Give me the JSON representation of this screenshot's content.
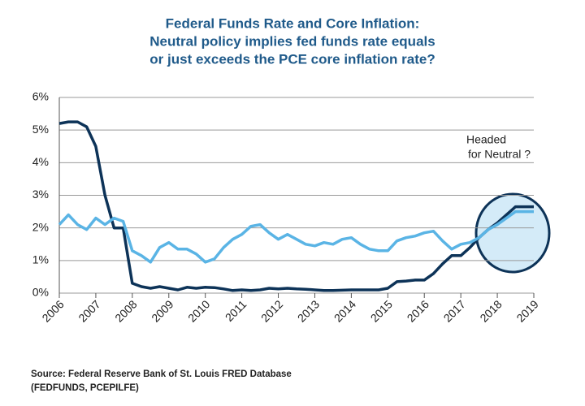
{
  "chart_data": {
    "type": "line",
    "title": [
      "Federal Funds Rate and Core Inflation:",
      "Neutral policy implies fed funds rate equals",
      "or just exceeds the PCE core inflation rate?"
    ],
    "x": [
      2006,
      2006.25,
      2006.5,
      2006.75,
      2007,
      2007.25,
      2007.5,
      2007.75,
      2008,
      2008.25,
      2008.5,
      2008.75,
      2009,
      2009.25,
      2009.5,
      2009.75,
      2010,
      2010.25,
      2010.5,
      2010.75,
      2011,
      2011.25,
      2011.5,
      2011.75,
      2012,
      2012.25,
      2012.5,
      2012.75,
      2013,
      2013.25,
      2013.5,
      2013.75,
      2014,
      2014.25,
      2014.5,
      2014.75,
      2015,
      2015.25,
      2015.5,
      2015.75,
      2016,
      2016.25,
      2016.5,
      2016.75,
      2017,
      2017.25,
      2017.5,
      2017.75,
      2018,
      2018.25,
      2018.5,
      2018.75,
      2019
    ],
    "series": [
      {
        "color": "#0d3358",
        "values": [
          5.2,
          5.25,
          5.25,
          5.1,
          4.5,
          3.0,
          2.0,
          2.0,
          0.3,
          0.2,
          0.15,
          0.2,
          0.15,
          0.1,
          0.18,
          0.15,
          0.18,
          0.17,
          0.13,
          0.08,
          0.1,
          0.08,
          0.1,
          0.15,
          0.13,
          0.15,
          0.13,
          0.12,
          0.1,
          0.08,
          0.08,
          0.09,
          0.1,
          0.1,
          0.1,
          0.1,
          0.15,
          0.35,
          0.37,
          0.4,
          0.4,
          0.6,
          0.9,
          1.15,
          1.15,
          1.4,
          1.7,
          1.95,
          2.15,
          2.4,
          2.65,
          2.65,
          2.65
        ]
      },
      {
        "color": "#5ab4e5",
        "values": [
          2.1,
          2.4,
          2.1,
          1.95,
          2.3,
          2.1,
          2.3,
          2.2,
          1.3,
          1.15,
          0.95,
          1.4,
          1.55,
          1.35,
          1.35,
          1.2,
          0.95,
          1.05,
          1.4,
          1.65,
          1.8,
          2.05,
          2.1,
          1.85,
          1.65,
          1.8,
          1.65,
          1.5,
          1.45,
          1.55,
          1.5,
          1.65,
          1.7,
          1.5,
          1.35,
          1.3,
          1.3,
          1.6,
          1.7,
          1.75,
          1.85,
          1.9,
          1.6,
          1.35,
          1.5,
          1.55,
          1.7,
          1.95,
          2.1,
          2.3,
          2.5,
          2.5,
          2.5
        ]
      }
    ],
    "xlim": [
      2006,
      2019
    ],
    "xticks": [
      2006,
      2007,
      2008,
      2009,
      2010,
      2011,
      2012,
      2013,
      2014,
      2015,
      2016,
      2017,
      2018,
      2019
    ],
    "ylim": [
      0,
      6
    ],
    "yticks": [
      {
        "value": 0,
        "label": "0%"
      },
      {
        "value": 1,
        "label": "1%"
      },
      {
        "value": 2,
        "label": "2%"
      },
      {
        "value": 3,
        "label": "3%"
      },
      {
        "value": 4,
        "label": "4%"
      },
      {
        "value": 5,
        "label": "5%"
      },
      {
        "value": 6,
        "label": "6%"
      }
    ],
    "grid": true,
    "annotation": [
      "Headed",
      "for Neutral ?"
    ],
    "source": [
      "Source:  Federal Reserve Bank of St. Louis FRED Database",
      "(FEDFUNDS, PCEPILFE)"
    ]
  }
}
